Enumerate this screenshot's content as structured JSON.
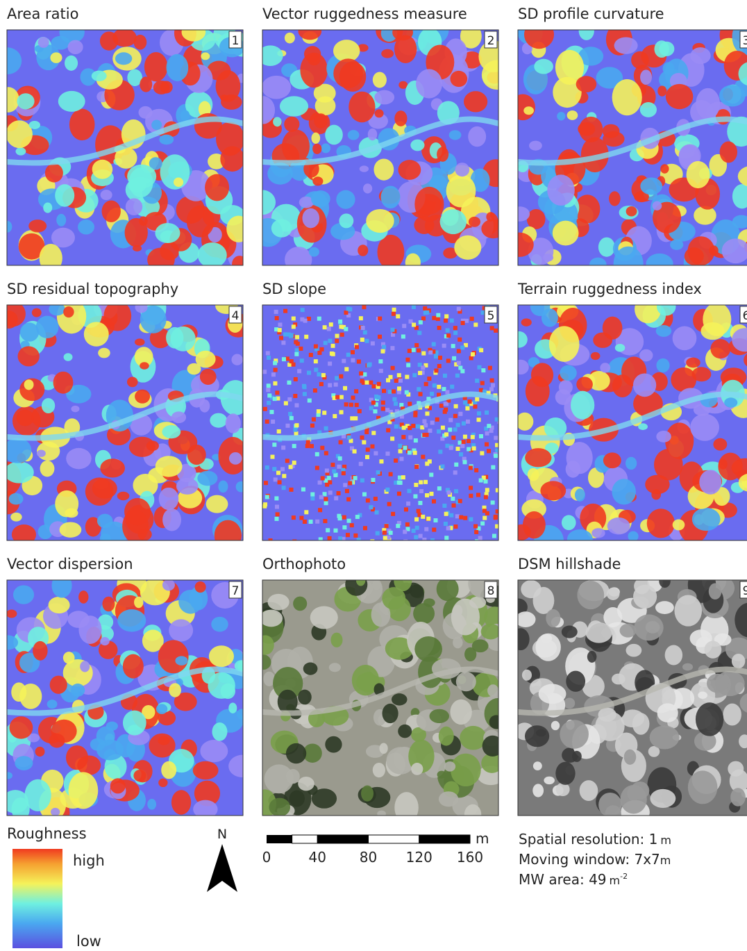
{
  "panels": [
    {
      "title": "Area ratio",
      "number": "1"
    },
    {
      "title": "Vector ruggedness measure",
      "number": "2"
    },
    {
      "title": "SD profile curvature",
      "number": "3"
    },
    {
      "title": "SD residual topography",
      "number": "4"
    },
    {
      "title": "SD slope",
      "number": "5"
    },
    {
      "title": "Terrain ruggedness index",
      "number": "6"
    },
    {
      "title": "Vector dispersion",
      "number": "7"
    },
    {
      "title": "Orthophoto",
      "number": "8"
    },
    {
      "title": "DSM hillshade",
      "number": "9"
    }
  ],
  "legend": {
    "title": "Roughness",
    "high": "high",
    "low": "low"
  },
  "north": "N",
  "scale_bar": {
    "ticks": [
      0,
      40,
      80,
      120,
      160
    ],
    "unit": "m"
  },
  "notes": [
    {
      "text": "Spatial resolution: 1",
      "unit": "m"
    },
    {
      "text": "Moving window: 7x7",
      "unit": "m"
    },
    {
      "text": "MW area: 49",
      "unit": "m",
      "sup": "-2"
    }
  ]
}
